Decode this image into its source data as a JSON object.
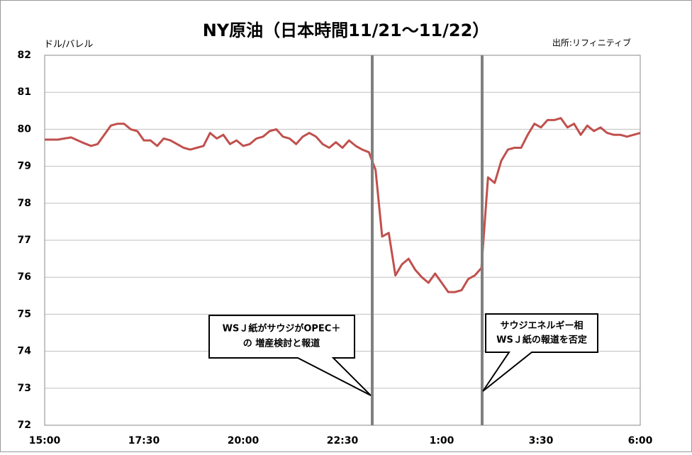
{
  "chart_data": {
    "type": "line",
    "title": "NY原油（日本時間11/21～11/22）",
    "ylabel": "ドル/バレル",
    "source": "出所:リフィニティブ",
    "categories": [
      "15:00",
      null,
      null,
      null,
      null,
      null,
      null,
      null,
      null,
      null,
      null,
      null,
      null,
      null,
      null,
      "17:30",
      null,
      null,
      null,
      null,
      null,
      null,
      null,
      null,
      null,
      null,
      null,
      null,
      null,
      null,
      "20:00",
      null,
      null,
      null,
      null,
      null,
      null,
      null,
      null,
      null,
      null,
      null,
      null,
      null,
      null,
      "22:30",
      null,
      null,
      null,
      null,
      null,
      null,
      null,
      null,
      null,
      null,
      null,
      null,
      null,
      null,
      "1:00",
      null,
      null,
      null,
      null,
      null,
      null,
      null,
      null,
      null,
      null,
      null,
      null,
      null,
      null,
      "3:30",
      null,
      null,
      null,
      null,
      null,
      null,
      null,
      null,
      null,
      null,
      null,
      null,
      null,
      null,
      "6:00"
    ],
    "series": [
      {
        "color": "#c0504d",
        "values": [
          79.72,
          79.72,
          79.72,
          79.75,
          79.78,
          79.7,
          79.62,
          79.55,
          79.6,
          79.85,
          80.1,
          80.15,
          80.15,
          80.0,
          79.95,
          79.7,
          79.7,
          79.55,
          79.75,
          79.7,
          79.6,
          79.5,
          79.45,
          79.5,
          79.55,
          79.9,
          79.75,
          79.85,
          79.6,
          79.7,
          79.55,
          79.6,
          79.75,
          79.8,
          79.95,
          80.0,
          79.8,
          79.75,
          79.6,
          79.8,
          79.9,
          79.8,
          79.6,
          79.5,
          79.65,
          79.5,
          79.7,
          79.55,
          79.45,
          79.38,
          78.9,
          77.1,
          77.2,
          76.05,
          76.35,
          76.5,
          76.2,
          76.0,
          75.85,
          76.1,
          75.85,
          75.6,
          75.6,
          75.65,
          75.95,
          76.05,
          76.25,
          78.7,
          78.55,
          79.15,
          79.45,
          79.5,
          79.5,
          79.85,
          80.15,
          80.05,
          80.25,
          80.25,
          80.3,
          80.05,
          80.15,
          79.85,
          80.1,
          79.95,
          80.05,
          79.9,
          79.85,
          79.85,
          79.8,
          79.85,
          79.9
        ]
      }
    ],
    "ylim": [
      72,
      82
    ],
    "yticks": [
      72,
      73,
      74,
      75,
      76,
      77,
      78,
      79,
      80,
      81,
      82
    ],
    "grid": true,
    "annotations": [
      {
        "lines": [
          "WSＪ紙がサウジがOPEC＋",
          "の 増産検討と報道"
        ]
      },
      {
        "lines": [
          "サウジエネルギー相",
          "WSＪ紙の報道を否定"
        ]
      }
    ]
  }
}
